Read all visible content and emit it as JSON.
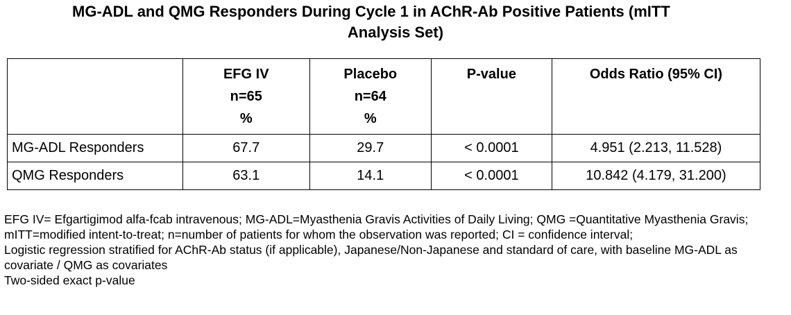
{
  "title": {
    "line1": "MG-ADL and QMG Responders During Cycle 1 in AChR-Ab Positive Patients (mITT",
    "line2": "Analysis Set)"
  },
  "table": {
    "headers": [
      {
        "lines": [
          ""
        ]
      },
      {
        "lines": [
          "EFG IV",
          "n=65",
          "%"
        ]
      },
      {
        "lines": [
          "Placebo",
          "n=64",
          "%"
        ]
      },
      {
        "lines": [
          "P-value"
        ]
      },
      {
        "lines": [
          "Odds Ratio (95% CI)"
        ]
      }
    ],
    "rows": [
      [
        "MG-ADL Responders",
        "67.7",
        "29.7",
        "< 0.0001",
        "4.951 (2.213, 11.528)"
      ],
      [
        "QMG Responders",
        "63.1",
        "14.1",
        "< 0.0001",
        "10.842 (4.179, 31.200)"
      ]
    ]
  },
  "footnotes": [
    "EFG IV= Efgartigimod alfa-fcab intravenous; MG-ADL=Myasthenia Gravis Activities of Daily Living; QMG =Quantitative Myasthenia Gravis; mITT=modified intent-to-treat; n=number of patients for whom the observation was reported; CI = confidence interval;",
    "Logistic regression stratified for AChR-Ab status (if applicable), Japanese/Non-Japanese and standard of care, with baseline MG-ADL as covariate / QMG as covariates",
    "Two-sided exact p-value"
  ]
}
